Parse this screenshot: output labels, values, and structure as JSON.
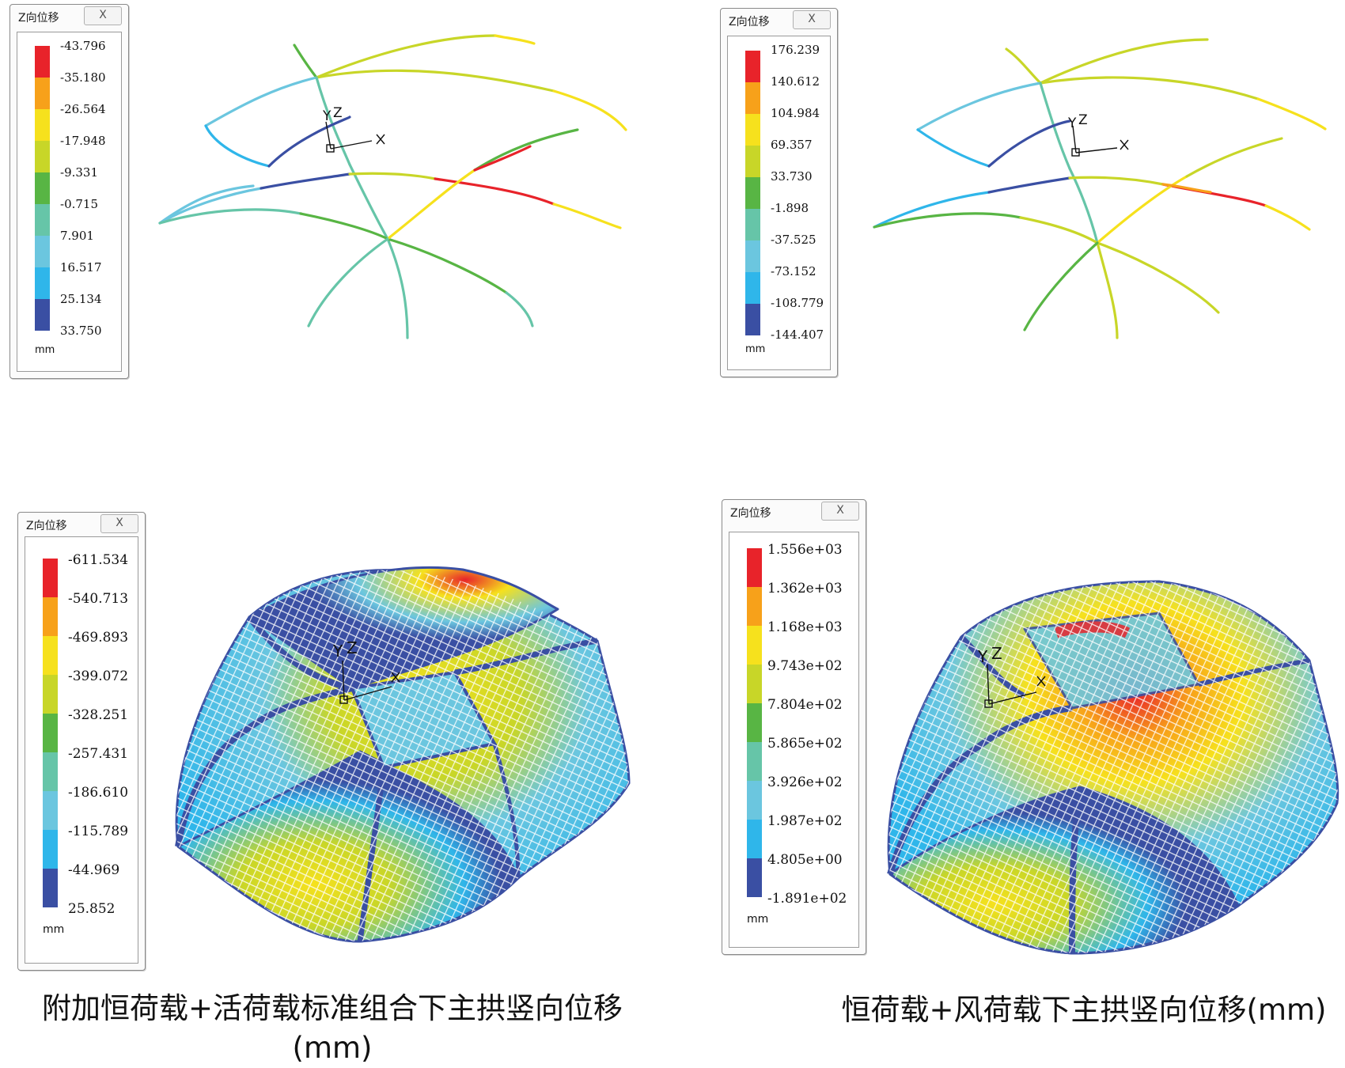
{
  "panels": [
    {
      "legend_title": "Z向位移",
      "close_label": "X",
      "unit": "mm",
      "values": [
        "-43.796",
        "-35.180",
        "-26.564",
        "-17.948",
        "-9.331",
        "-0.715",
        "7.901",
        "16.517",
        "25.134",
        "33.750"
      ]
    },
    {
      "legend_title": "Z向位移",
      "close_label": "X",
      "unit": "mm",
      "values": [
        "176.239",
        "140.612",
        "104.984",
        "69.357",
        "33.730",
        "-1.898",
        "-37.525",
        "-73.152",
        "-108.779",
        "-144.407"
      ]
    },
    {
      "legend_title": "Z向位移",
      "close_label": "X",
      "unit": "mm",
      "values": [
        "-611.534",
        "-540.713",
        "-469.893",
        "-399.072",
        "-328.251",
        "-257.431",
        "-186.610",
        "-115.789",
        "-44.969",
        "25.852"
      ]
    },
    {
      "legend_title": "Z向位移",
      "close_label": "X",
      "unit": "mm",
      "values": [
        "1.556e+03",
        "1.362e+03",
        "1.168e+03",
        "9.743e+02",
        "7.804e+02",
        "5.865e+02",
        "3.926e+02",
        "1.987e+02",
        "4.805e+00",
        "-1.891e+02"
      ]
    }
  ],
  "axis_labels": {
    "x": "X",
    "y": "Y",
    "z": "Z"
  },
  "colors": {
    "scale": [
      "#e8232a",
      "#f7a11a",
      "#f6e11d",
      "#c8d628",
      "#58b544",
      "#66c5a8",
      "#6bc6df",
      "#2fb6ea",
      "#3a4fa3"
    ],
    "frame": "#3a4fa3"
  },
  "captions": {
    "left": "附加恒荷载+活荷载标准组合下主拱竖向位移(mm)",
    "right": "恒荷载+风荷载下主拱竖向位移(mm)"
  }
}
